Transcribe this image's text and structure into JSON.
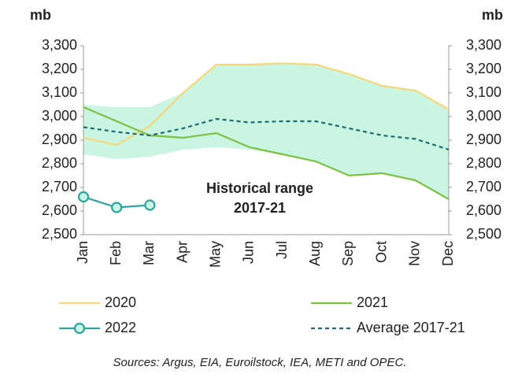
{
  "chart_data": {
    "type": "line",
    "y_label": "mb",
    "y2_label": "mb",
    "categories": [
      "Jan",
      "Feb",
      "Mar",
      "Apr",
      "May",
      "Jun",
      "Jul",
      "Aug",
      "Sep",
      "Oct",
      "Nov",
      "Dec"
    ],
    "ylim": [
      2500,
      3300
    ],
    "yticks": [
      {
        "value": 2500,
        "label": "2,500"
      },
      {
        "value": 2600,
        "label": "2,600"
      },
      {
        "value": 2700,
        "label": "2,700"
      },
      {
        "value": 2800,
        "label": "2,800"
      },
      {
        "value": 2900,
        "label": "2,900"
      },
      {
        "value": 3000,
        "label": "3,000"
      },
      {
        "value": 3100,
        "label": "3,100"
      },
      {
        "value": 3200,
        "label": "3,200"
      },
      {
        "value": 3300,
        "label": "3,300"
      }
    ],
    "y2lim": [
      2500,
      3300
    ],
    "y2ticks": [
      {
        "value": 2500,
        "label": "2,500"
      },
      {
        "value": 2600,
        "label": "2,600"
      },
      {
        "value": 2700,
        "label": "2,700"
      },
      {
        "value": 2800,
        "label": "2,800"
      },
      {
        "value": 2900,
        "label": "2,900"
      },
      {
        "value": 3000,
        "label": "3,000"
      },
      {
        "value": 3100,
        "label": "3,100"
      },
      {
        "value": 3200,
        "label": "3,200"
      },
      {
        "value": 3300,
        "label": "3,300"
      }
    ],
    "range": {
      "color": "#c9f5e2",
      "upper": [
        3050,
        3040,
        3040,
        3100,
        3220,
        3220,
        3225,
        3220,
        3180,
        3130,
        3110,
        3030
      ],
      "lower": [
        2840,
        2820,
        2830,
        2860,
        2870,
        2860,
        2840,
        2810,
        2750,
        2760,
        2730,
        2650
      ]
    },
    "series": [
      {
        "name": "2020",
        "color": "#f5d77a",
        "style": "solid",
        "values": [
          2910,
          2880,
          2960,
          3100,
          3220,
          3220,
          3225,
          3220,
          3180,
          3130,
          3110,
          3030
        ]
      },
      {
        "name": "2021",
        "color": "#7cc242",
        "style": "solid",
        "values": [
          3040,
          2980,
          2920,
          2910,
          2930,
          2870,
          2840,
          2810,
          2750,
          2760,
          2730,
          2650
        ]
      },
      {
        "name": "2022",
        "color": "#2aa5a0",
        "style": "markers",
        "values": [
          2660,
          2615,
          2625,
          null,
          null,
          null,
          null,
          null,
          null,
          null,
          null,
          null
        ]
      },
      {
        "name": "Average 2017-21",
        "color": "#1f6b73",
        "style": "dashed",
        "values": [
          2955,
          2935,
          2920,
          2950,
          2990,
          2975,
          2980,
          2980,
          2950,
          2920,
          2905,
          2860
        ]
      }
    ],
    "annotation": [
      "Historical range",
      "2017-21"
    ],
    "source": "Sources: Argus, EIA, Euroilstock, IEA, METI and OPEC."
  }
}
